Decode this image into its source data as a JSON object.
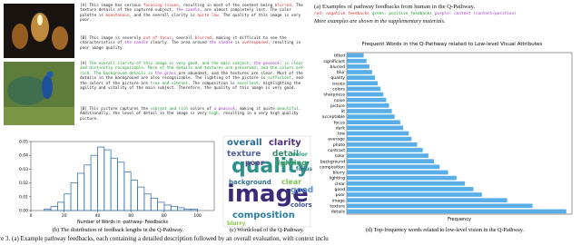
{
  "panel_a": {
    "examples": [
      {
        "feedbacks": [
          {
            "segments": [
              {
                "text": "[A]",
                "color": "#222"
              },
              {
                "text": " This image has serious ",
                "color": "#222"
              },
              {
                "text": "focusing issues",
                "color": "#d62d2d"
              },
              {
                "text": ", resulting in most of the content being ",
                "color": "#222"
              },
              {
                "text": "blurred",
                "color": "#d62d2d"
              },
              {
                "text": ". The texture details of the captured subject, ",
                "color": "#222"
              },
              {
                "text": "the candle",
                "color": "#9b30c8"
              },
              {
                "text": ", are almost completely lost. The color palette is ",
                "color": "#222"
              },
              {
                "text": "monotonous",
                "color": "#d62d2d"
              },
              {
                "text": ", and the overall clarity is ",
                "color": "#222"
              },
              {
                "text": "quite low",
                "color": "#d62d2d"
              },
              {
                "text": ". The quality of this image is very poor.",
                "color": "#222"
              }
            ]
          },
          {
            "segments": [
              {
                "text": "[B]",
                "color": "#222"
              },
              {
                "text": " This image is severely ",
                "color": "#222"
              },
              {
                "text": "out of focus",
                "color": "#d62d2d"
              },
              {
                "text": ", overall ",
                "color": "#222"
              },
              {
                "text": "blurred",
                "color": "#d62d2d"
              },
              {
                "text": ", making it difficult to see the characteristics of ",
                "color": "#222"
              },
              {
                "text": "the candle",
                "color": "#9b30c8"
              },
              {
                "text": " clearly. The area around ",
                "color": "#222"
              },
              {
                "text": "the candle",
                "color": "#9b30c8"
              },
              {
                "text": " is ",
                "color": "#222"
              },
              {
                "text": "overexposed",
                "color": "#d62d2d"
              },
              {
                "text": ", resulting in poor image quality.",
                "color": "#222"
              }
            ]
          }
        ]
      },
      {
        "feedbacks": [
          {
            "segments": [
              {
                "text": "[A]",
                "color": "#222"
              },
              {
                "text": " The overall clarity of this image is very good, and the main subject, ",
                "color": "#1c9a2e"
              },
              {
                "text": "the peacock",
                "color": "#9b30c8"
              },
              {
                "text": ", is clear and distinctly recognizable. More of the details and textures are preserved, and the colors are rich. The background details in ",
                "color": "#1c9a2e"
              },
              {
                "text": "the grass",
                "color": "#9b30c8"
              },
              {
                "text": " are abundant, and the textures are clear. Most of the details in the background are also recognizable. The lighting of the picture is ",
                "color": "#222"
              },
              {
                "text": "sufficient",
                "color": "#1c9a2e"
              },
              {
                "text": ", and the colors of the picture are ",
                "color": "#222"
              },
              {
                "text": "true and vibrant",
                "color": "#1c9a2e"
              },
              {
                "text": ". The composition is ",
                "color": "#222"
              },
              {
                "text": "excellent",
                "color": "#1c9a2e"
              },
              {
                "text": ", highlighting the agility and vitality of the main subject. Therefore, the quality of this image is very good.",
                "color": "#222"
              }
            ]
          },
          {
            "segments": [
              {
                "text": "[B]",
                "color": "#222"
              },
              {
                "text": " This picture captures the ",
                "color": "#222"
              },
              {
                "text": "vibrant and rich",
                "color": "#1c9a2e"
              },
              {
                "text": " colors of ",
                "color": "#222"
              },
              {
                "text": "a peacock",
                "color": "#9b30c8"
              },
              {
                "text": ", making it quite ",
                "color": "#222"
              },
              {
                "text": "beautiful",
                "color": "#1c9a2e"
              },
              {
                "text": ". Additionally, the level of detail in the image is very ",
                "color": "#222"
              },
              {
                "text": "high",
                "color": "#1c9a2e"
              },
              {
                "text": ", resulting in a very high quality picture.",
                "color": "#222"
              }
            ]
          }
        ]
      }
    ],
    "caption": "(a) Examples of pathway feedbacks from human in the Q-Pathway.",
    "legend": [
      {
        "text": "red: negative feedbacks",
        "color": "#d62d2d"
      },
      {
        "text": "green: positive feedbacks",
        "color": "#1c9a2e"
      },
      {
        "text": "purple: context (content/position)",
        "color": "#9b30c8"
      }
    ],
    "note": "More examples are shown in the supplementary materials."
  },
  "chart_data": [
    {
      "type": "histogram",
      "x_label": "Number of Words in -pathway- Feedbacks",
      "color": "#3b75b0",
      "bins": [
        8,
        12,
        16,
        20,
        24,
        28,
        32,
        36,
        40,
        44,
        48,
        52,
        56,
        60,
        64,
        68,
        72,
        76,
        80,
        84,
        88,
        92,
        96,
        100
      ],
      "values": [
        0.001,
        0.003,
        0.006,
        0.012,
        0.02,
        0.027,
        0.033,
        0.04,
        0.046,
        0.044,
        0.038,
        0.035,
        0.028,
        0.022,
        0.017,
        0.012,
        0.009,
        0.006,
        0.004,
        0.003,
        0.002,
        0.001,
        0.001
      ],
      "xlim": [
        0,
        110
      ],
      "xticks": [
        0,
        20,
        40,
        60,
        80,
        100
      ],
      "ylim": [
        0,
        0.05
      ],
      "yticks": [
        {
          "value": 0,
          "label": "0.00"
        },
        0.01,
        0.02,
        0.03,
        0.04,
        0.05
      ],
      "caption": "(b) The distribution of feedback lengths in the Q-Pathway."
    },
    {
      "type": "wordcloud",
      "words": [
        "image",
        "quality",
        "texture",
        "detail",
        "overall",
        "clarity",
        "composition",
        "poor",
        "lighting",
        "background",
        "clear",
        "color",
        "good",
        "colors",
        "blurry",
        "focus"
      ],
      "colors": [
        "#3b2a7a",
        "#2f8f8c",
        "#4b5fa0",
        "#3a8c6e",
        "#2a6f91",
        "#4f2d7f",
        "#2d7ea0",
        "#5b3c8f",
        "#46a06a",
        "#2f6d8f",
        "#7fc35a",
        "#31a088",
        "#5b8fcf",
        "#3d4f95",
        "#8acb4e",
        "#2b7a8a"
      ],
      "caption": "(c) Wordcloud of the Q-Pathway."
    },
    {
      "type": "barh",
      "title": "Frequent Words in the Q-Pathway related to Low-level Visual Attributes",
      "x_label": "Frequency",
      "color": "#5aaee8",
      "categories": [
        "tilted",
        "significant",
        "blurred",
        "blur",
        "quality",
        "issues",
        "colors",
        "sharpness",
        "noise",
        "picture",
        "lit",
        "acceptable",
        "focus",
        "dark",
        "low",
        "average",
        "photo",
        "contrast",
        "color",
        "background",
        "composition",
        "blurry",
        "lighting",
        "clear",
        "good",
        "poor",
        "image",
        "texture",
        "details"
      ],
      "values": [
        0.06,
        0.07,
        0.08,
        0.09,
        0.1,
        0.11,
        0.12,
        0.13,
        0.14,
        0.15,
        0.16,
        0.17,
        0.19,
        0.2,
        0.22,
        0.23,
        0.25,
        0.27,
        0.29,
        0.31,
        0.33,
        0.36,
        0.39,
        0.42,
        0.45,
        0.48,
        0.57,
        0.66,
        0.78
      ],
      "xlim": [
        0,
        0.8
      ],
      "caption": "(d) Top-frequency words related to low-level vision in the Q-Pathway."
    }
  ],
  "figure_caption": "Figure 3. (a) Example pathway feedbacks, each containing a detailed description followed by an overall evaluation, with context inclu"
}
